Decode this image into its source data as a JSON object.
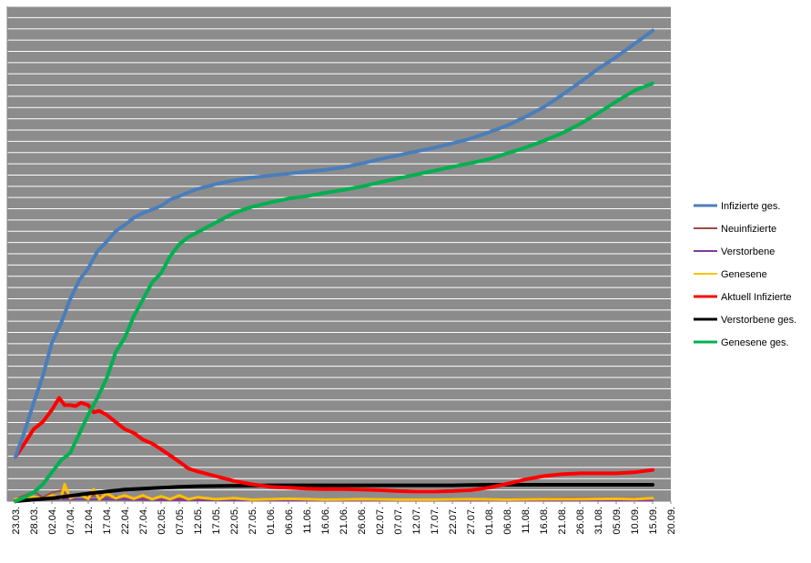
{
  "chart_data": {
    "type": "line",
    "title": "",
    "xlabel": "",
    "ylabel": "",
    "grid": true,
    "legend_position": "right",
    "plot_background": "#8C8C8C",
    "grid_color": "#FFFFFF",
    "y_axis_labels_visible": false,
    "y_range_relative": [
      0,
      1
    ],
    "y_gridline_count": 44,
    "x_ticks": [
      "23.03.",
      "28.03.",
      "02.04.",
      "07.04.",
      "12.04.",
      "17.04.",
      "22.04.",
      "27.04.",
      "02.05.",
      "07.05.",
      "12.05.",
      "17.05.",
      "22.05.",
      "27.05.",
      "01.06.",
      "06.06.",
      "11.06.",
      "16.06.",
      "21.06.",
      "26.06.",
      "02.07.",
      "07.07.",
      "12.07.",
      "17.07.",
      "22.07.",
      "27.07.",
      "01.08.",
      "06.08.",
      "11.08.",
      "16.08.",
      "21.08.",
      "26.08.",
      "31.08.",
      "05.09.",
      "10.09.",
      "15.09.",
      "20.09."
    ],
    "x_index_range": [
      0,
      36
    ],
    "series": [
      {
        "name": "Infizierte ges.",
        "color": "#4A7EBB",
        "width": 4,
        "points": [
          [
            0,
            0.092
          ],
          [
            0.5,
            0.145
          ],
          [
            1,
            0.205
          ],
          [
            1.5,
            0.26
          ],
          [
            2,
            0.33
          ],
          [
            2.5,
            0.37
          ],
          [
            3,
            0.42
          ],
          [
            3.5,
            0.46
          ],
          [
            4,
            0.485
          ],
          [
            4.5,
            0.52
          ],
          [
            5,
            0.54
          ],
          [
            5.5,
            0.562
          ],
          [
            6,
            0.575
          ],
          [
            6.5,
            0.59
          ],
          [
            7,
            0.6
          ],
          [
            7.5,
            0.607
          ],
          [
            8,
            0.615
          ],
          [
            8.5,
            0.628
          ],
          [
            9,
            0.635
          ],
          [
            9.5,
            0.643
          ],
          [
            10,
            0.65
          ],
          [
            11,
            0.66
          ],
          [
            12,
            0.668
          ],
          [
            13,
            0.674
          ],
          [
            14,
            0.678
          ],
          [
            15,
            0.682
          ],
          [
            16,
            0.686
          ],
          [
            17,
            0.69
          ],
          [
            18,
            0.695
          ],
          [
            19,
            0.703
          ],
          [
            20,
            0.712
          ],
          [
            21,
            0.72
          ],
          [
            22,
            0.728
          ],
          [
            23,
            0.736
          ],
          [
            24,
            0.745
          ],
          [
            25,
            0.755
          ],
          [
            26,
            0.768
          ],
          [
            27,
            0.782
          ],
          [
            28,
            0.8
          ],
          [
            29,
            0.82
          ],
          [
            30,
            0.845
          ],
          [
            31,
            0.872
          ],
          [
            32,
            0.9
          ],
          [
            33,
            0.925
          ],
          [
            34,
            0.952
          ],
          [
            35,
            0.98
          ]
        ]
      },
      {
        "name": "Neuinfizierte",
        "color": "#9C4B45",
        "width": 2,
        "points": [
          [
            0,
            0.005
          ],
          [
            0.5,
            0.012
          ],
          [
            1,
            0.02
          ],
          [
            1.5,
            0.008
          ],
          [
            2,
            0.018
          ],
          [
            2.5,
            0.022
          ],
          [
            3,
            0.01
          ],
          [
            3.5,
            0.015
          ],
          [
            4,
            0.01
          ],
          [
            4.5,
            0.012
          ],
          [
            5,
            0.007
          ],
          [
            5.5,
            0.01
          ],
          [
            6,
            0.005
          ],
          [
            7,
            0.006
          ],
          [
            8,
            0.004
          ],
          [
            9,
            0.005
          ],
          [
            10,
            0.004
          ],
          [
            12,
            0.003
          ],
          [
            14,
            0.003
          ],
          [
            16,
            0.003
          ],
          [
            18,
            0.003
          ],
          [
            20,
            0.003
          ],
          [
            22,
            0.003
          ],
          [
            24,
            0.003
          ],
          [
            26,
            0.004
          ],
          [
            28,
            0.005
          ],
          [
            30,
            0.006
          ],
          [
            32,
            0.006
          ],
          [
            34,
            0.006
          ],
          [
            35,
            0.006
          ]
        ]
      },
      {
        "name": "Verstorbene",
        "color": "#7E3BA1",
        "width": 2,
        "points": [
          [
            0,
            0.002
          ],
          [
            2,
            0.004
          ],
          [
            4,
            0.004
          ],
          [
            6,
            0.003
          ],
          [
            8,
            0.002
          ],
          [
            10,
            0.002
          ],
          [
            15,
            0.001
          ],
          [
            20,
            0.001
          ],
          [
            25,
            0.001
          ],
          [
            30,
            0.001
          ],
          [
            35,
            0.001
          ]
        ]
      },
      {
        "name": "Genesene",
        "color": "#FFC000",
        "width": 3,
        "points": [
          [
            0,
            0.004
          ],
          [
            1,
            0.009
          ],
          [
            1.5,
            0.004
          ],
          [
            2,
            0.012
          ],
          [
            2.5,
            0.006
          ],
          [
            2.7,
            0.035
          ],
          [
            3,
            0.006
          ],
          [
            3.5,
            0.014
          ],
          [
            4,
            0.005
          ],
          [
            4.3,
            0.025
          ],
          [
            4.6,
            0.004
          ],
          [
            5,
            0.016
          ],
          [
            5.5,
            0.006
          ],
          [
            6,
            0.012
          ],
          [
            6.5,
            0.005
          ],
          [
            7,
            0.012
          ],
          [
            7.5,
            0.004
          ],
          [
            8,
            0.01
          ],
          [
            8.5,
            0.004
          ],
          [
            9,
            0.012
          ],
          [
            9.5,
            0.004
          ],
          [
            10,
            0.008
          ],
          [
            11,
            0.004
          ],
          [
            12,
            0.006
          ],
          [
            13,
            0.003
          ],
          [
            15,
            0.005
          ],
          [
            17,
            0.003
          ],
          [
            19,
            0.004
          ],
          [
            21,
            0.003
          ],
          [
            23,
            0.003
          ],
          [
            25,
            0.004
          ],
          [
            27,
            0.003
          ],
          [
            29,
            0.004
          ],
          [
            31,
            0.004
          ],
          [
            33,
            0.005
          ],
          [
            34,
            0.004
          ],
          [
            35,
            0.006
          ]
        ]
      },
      {
        "name": "Aktuell Infizierte",
        "color": "#FF0000",
        "width": 4,
        "points": [
          [
            0,
            0.092
          ],
          [
            0.5,
            0.12
          ],
          [
            1,
            0.15
          ],
          [
            1.5,
            0.165
          ],
          [
            2,
            0.19
          ],
          [
            2.4,
            0.215
          ],
          [
            2.7,
            0.2
          ],
          [
            3,
            0.2
          ],
          [
            3.3,
            0.198
          ],
          [
            3.6,
            0.205
          ],
          [
            4,
            0.2
          ],
          [
            4.3,
            0.185
          ],
          [
            4.6,
            0.188
          ],
          [
            5,
            0.18
          ],
          [
            5.5,
            0.165
          ],
          [
            6,
            0.15
          ],
          [
            6.5,
            0.142
          ],
          [
            7,
            0.128
          ],
          [
            7.5,
            0.12
          ],
          [
            8,
            0.108
          ],
          [
            8.5,
            0.095
          ],
          [
            9,
            0.082
          ],
          [
            9.5,
            0.068
          ],
          [
            10,
            0.062
          ],
          [
            11,
            0.052
          ],
          [
            12,
            0.042
          ],
          [
            13,
            0.035
          ],
          [
            14,
            0.03
          ],
          [
            15,
            0.028
          ],
          [
            16,
            0.026
          ],
          [
            17,
            0.025
          ],
          [
            18,
            0.025
          ],
          [
            19,
            0.024
          ],
          [
            20,
            0.023
          ],
          [
            21,
            0.021
          ],
          [
            22,
            0.02
          ],
          [
            23,
            0.02
          ],
          [
            24,
            0.021
          ],
          [
            25,
            0.023
          ],
          [
            26,
            0.028
          ],
          [
            27,
            0.036
          ],
          [
            28,
            0.045
          ],
          [
            29,
            0.052
          ],
          [
            30,
            0.056
          ],
          [
            31,
            0.058
          ],
          [
            32,
            0.058
          ],
          [
            33,
            0.058
          ],
          [
            34,
            0.06
          ],
          [
            35,
            0.065
          ]
        ]
      },
      {
        "name": "Verstorbene ges.",
        "color": "#000000",
        "width": 4,
        "points": [
          [
            0,
            0.0
          ],
          [
            1,
            0.003
          ],
          [
            2,
            0.006
          ],
          [
            3,
            0.011
          ],
          [
            4,
            0.016
          ],
          [
            5,
            0.02
          ],
          [
            6,
            0.024
          ],
          [
            7,
            0.026
          ],
          [
            8,
            0.028
          ],
          [
            9,
            0.03
          ],
          [
            10,
            0.031
          ],
          [
            12,
            0.032
          ],
          [
            14,
            0.033
          ],
          [
            16,
            0.033
          ],
          [
            18,
            0.033
          ],
          [
            20,
            0.033
          ],
          [
            22,
            0.033
          ],
          [
            24,
            0.033
          ],
          [
            26,
            0.034
          ],
          [
            28,
            0.034
          ],
          [
            30,
            0.034
          ],
          [
            32,
            0.034
          ],
          [
            35,
            0.034
          ]
        ]
      },
      {
        "name": "Genesene ges.",
        "color": "#00B050",
        "width": 4,
        "points": [
          [
            0,
            0.0
          ],
          [
            0.5,
            0.008
          ],
          [
            1,
            0.018
          ],
          [
            1.5,
            0.035
          ],
          [
            2,
            0.06
          ],
          [
            2.5,
            0.085
          ],
          [
            3,
            0.1
          ],
          [
            3.5,
            0.14
          ],
          [
            4,
            0.18
          ],
          [
            4.5,
            0.215
          ],
          [
            5,
            0.255
          ],
          [
            5.5,
            0.31
          ],
          [
            6,
            0.34
          ],
          [
            6.5,
            0.385
          ],
          [
            7,
            0.42
          ],
          [
            7.5,
            0.455
          ],
          [
            8,
            0.475
          ],
          [
            8.5,
            0.51
          ],
          [
            9,
            0.535
          ],
          [
            9.5,
            0.55
          ],
          [
            10,
            0.56
          ],
          [
            11,
            0.58
          ],
          [
            12,
            0.6
          ],
          [
            13,
            0.613
          ],
          [
            14,
            0.622
          ],
          [
            15,
            0.63
          ],
          [
            16,
            0.635
          ],
          [
            17,
            0.642
          ],
          [
            18,
            0.648
          ],
          [
            19,
            0.655
          ],
          [
            20,
            0.664
          ],
          [
            21,
            0.672
          ],
          [
            22,
            0.68
          ],
          [
            23,
            0.688
          ],
          [
            24,
            0.696
          ],
          [
            25,
            0.704
          ],
          [
            26,
            0.712
          ],
          [
            27,
            0.724
          ],
          [
            28,
            0.736
          ],
          [
            29,
            0.75
          ],
          [
            30,
            0.766
          ],
          [
            31,
            0.785
          ],
          [
            32,
            0.808
          ],
          [
            33,
            0.832
          ],
          [
            34,
            0.855
          ],
          [
            35,
            0.87
          ]
        ]
      }
    ]
  }
}
